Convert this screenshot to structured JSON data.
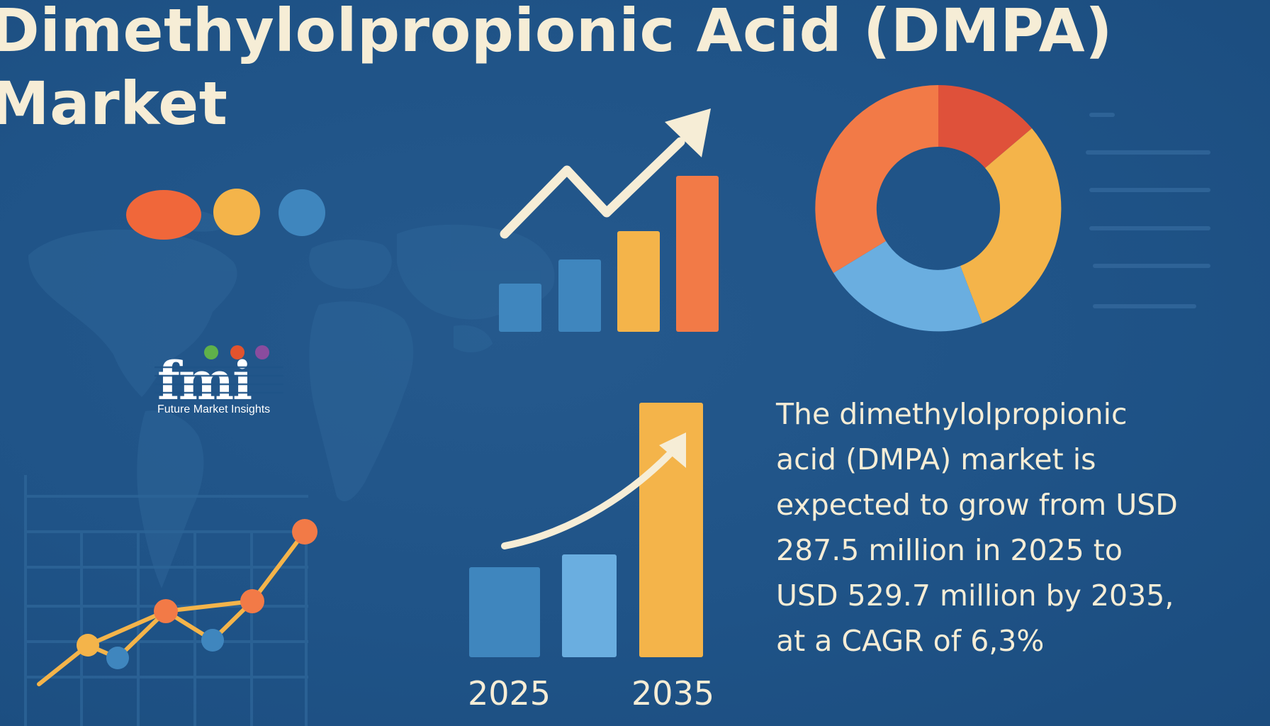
{
  "title": {
    "line1": "Dimethylolpropionic Acid (DMPA)",
    "line2": "Market"
  },
  "description": {
    "lines": [
      "The dimethylolpropionic",
      "acid (DMPA) market is",
      "expected to grow from USD",
      "287.5 million in 2025 to",
      "USD 529.7 million by 2035,",
      "at a CAGR of 6,3%"
    ]
  },
  "logo": {
    "wordmark": "fmi",
    "tagline": "Future Market Insights",
    "dot_colors": [
      "#5fb14a",
      "#e2532e",
      "#8a4c9e"
    ]
  },
  "growth_chart": {
    "categories": [
      "2025",
      "2035"
    ],
    "bar_levels": [
      0.36,
      0.4,
      1.0
    ]
  },
  "icons": {
    "world_map": "world-map-icon",
    "trend_arrow": "trend-arrow-icon",
    "donut": "donut-chart-icon",
    "line_chart": "line-chart-icon"
  },
  "colors": {
    "background": "#1f5488",
    "cream": "#f6edd6",
    "orange": "#f27a47",
    "yellow": "#f4b44a",
    "blue": "#3f86be",
    "light_blue": "#6aaee0",
    "red": "#df513a"
  }
}
